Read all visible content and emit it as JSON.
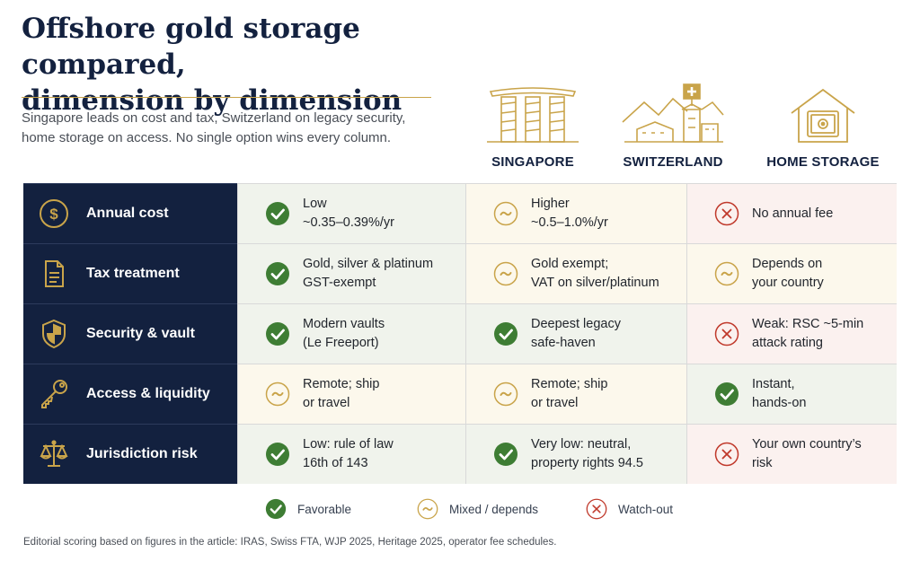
{
  "title_line1": "Offshore gold storage compared,",
  "title_line2": "dimension by dimension",
  "subtitle_line1": "Singapore leads on cost and tax, Switzerland on legacy security,",
  "subtitle_line2": "home storage on access. No single option wins every column.",
  "columns": [
    {
      "label": "SINGAPORE",
      "icon": "marina-bay-skyline-icon"
    },
    {
      "label": "SWITZERLAND",
      "icon": "swiss-town-mountains-icon"
    },
    {
      "label": "HOME STORAGE",
      "icon": "home-safe-icon"
    }
  ],
  "rows": [
    {
      "dimension": "Annual cost",
      "icon": "dollar-coin-icon",
      "cells": [
        {
          "rating": "favorable",
          "line1": "Low",
          "line2": "~0.35–0.39%/yr"
        },
        {
          "rating": "mixed",
          "line1": "Higher",
          "line2": "~0.5–1.0%/yr"
        },
        {
          "rating": "watch-out",
          "line1": "No annual fee",
          "line2": ""
        }
      ]
    },
    {
      "dimension": "Tax treatment",
      "icon": "document-icon",
      "cells": [
        {
          "rating": "favorable",
          "line1": "Gold, silver & platinum",
          "line2": "GST-exempt"
        },
        {
          "rating": "mixed",
          "line1": "Gold exempt;",
          "line2": "VAT on silver/platinum"
        },
        {
          "rating": "mixed",
          "line1": "Depends on",
          "line2": "your country"
        }
      ]
    },
    {
      "dimension": "Security & vault",
      "icon": "shield-icon",
      "cells": [
        {
          "rating": "favorable",
          "line1": "Modern vaults",
          "line2": "(Le Freeport)"
        },
        {
          "rating": "favorable",
          "line1": "Deepest legacy",
          "line2": "safe-haven"
        },
        {
          "rating": "watch-out",
          "line1": "Weak: RSC ~5-min",
          "line2": "attack rating"
        }
      ]
    },
    {
      "dimension": "Access & liquidity",
      "icon": "key-icon",
      "cells": [
        {
          "rating": "mixed",
          "line1": "Remote; ship",
          "line2": "or travel"
        },
        {
          "rating": "mixed",
          "line1": "Remote; ship",
          "line2": "or travel"
        },
        {
          "rating": "favorable",
          "line1": "Instant,",
          "line2": "hands-on"
        }
      ]
    },
    {
      "dimension": "Jurisdiction risk",
      "icon": "scales-icon",
      "cells": [
        {
          "rating": "favorable",
          "line1": "Low: rule of law",
          "line2": "16th of 143"
        },
        {
          "rating": "favorable",
          "line1": "Very low: neutral,",
          "line2": "property rights 94.5"
        },
        {
          "rating": "watch-out",
          "line1": "Your own country’s",
          "line2": "risk"
        }
      ]
    }
  ],
  "legend": {
    "favorable": "Favorable",
    "mixed": "Mixed / depends",
    "watchout": "Watch-out"
  },
  "colors": {
    "navy": "#13213f",
    "gold": "#c9a44a",
    "green": "#3e7d34",
    "red": "#c0392b"
  },
  "footnote": "Editorial scoring based on figures in the article: IRAS, Swiss FTA, WJP 2025, Heritage 2025, operator fee schedules."
}
